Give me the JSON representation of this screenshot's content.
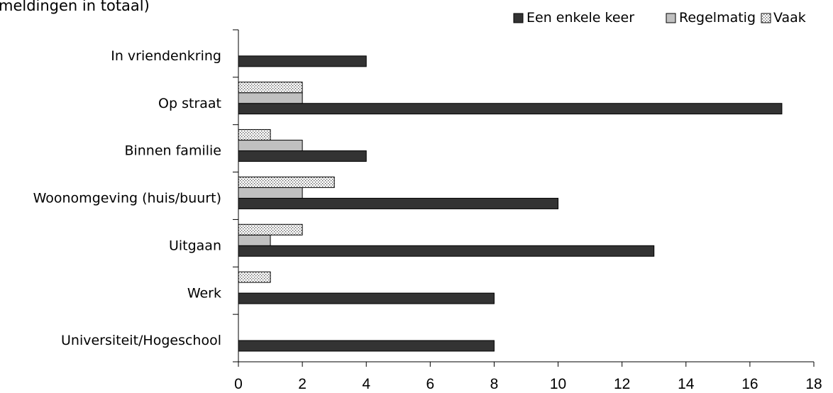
{
  "chart_data": {
    "type": "bar",
    "orientation": "horizontal",
    "title": "meldingen in totaal)",
    "categories": [
      "In vriendenkring",
      "Op straat",
      "Binnen familie",
      "Woonomgeving (huis/buurt)",
      "Uitgaan",
      "Werk",
      "Universiteit/Hogeschool"
    ],
    "series": [
      {
        "name": "Een enkele keer",
        "values": [
          4,
          17,
          4,
          10,
          13,
          8,
          8
        ],
        "color": "#333333",
        "pattern": "solid-dark"
      },
      {
        "name": "Regelmatig",
        "values": [
          0,
          2,
          2,
          2,
          1,
          0,
          0
        ],
        "color": "#c0c0c0",
        "pattern": "solid-light"
      },
      {
        "name": "Vaak",
        "values": [
          0,
          2,
          1,
          3,
          2,
          1,
          0
        ],
        "color": "#ffffff",
        "pattern": "dotted"
      }
    ],
    "xticks": [
      "0",
      "2",
      "4",
      "6",
      "8",
      "10",
      "12",
      "14",
      "16",
      "18"
    ],
    "xlim": [
      0,
      18
    ],
    "grid": false,
    "legend_position": "top-right"
  }
}
